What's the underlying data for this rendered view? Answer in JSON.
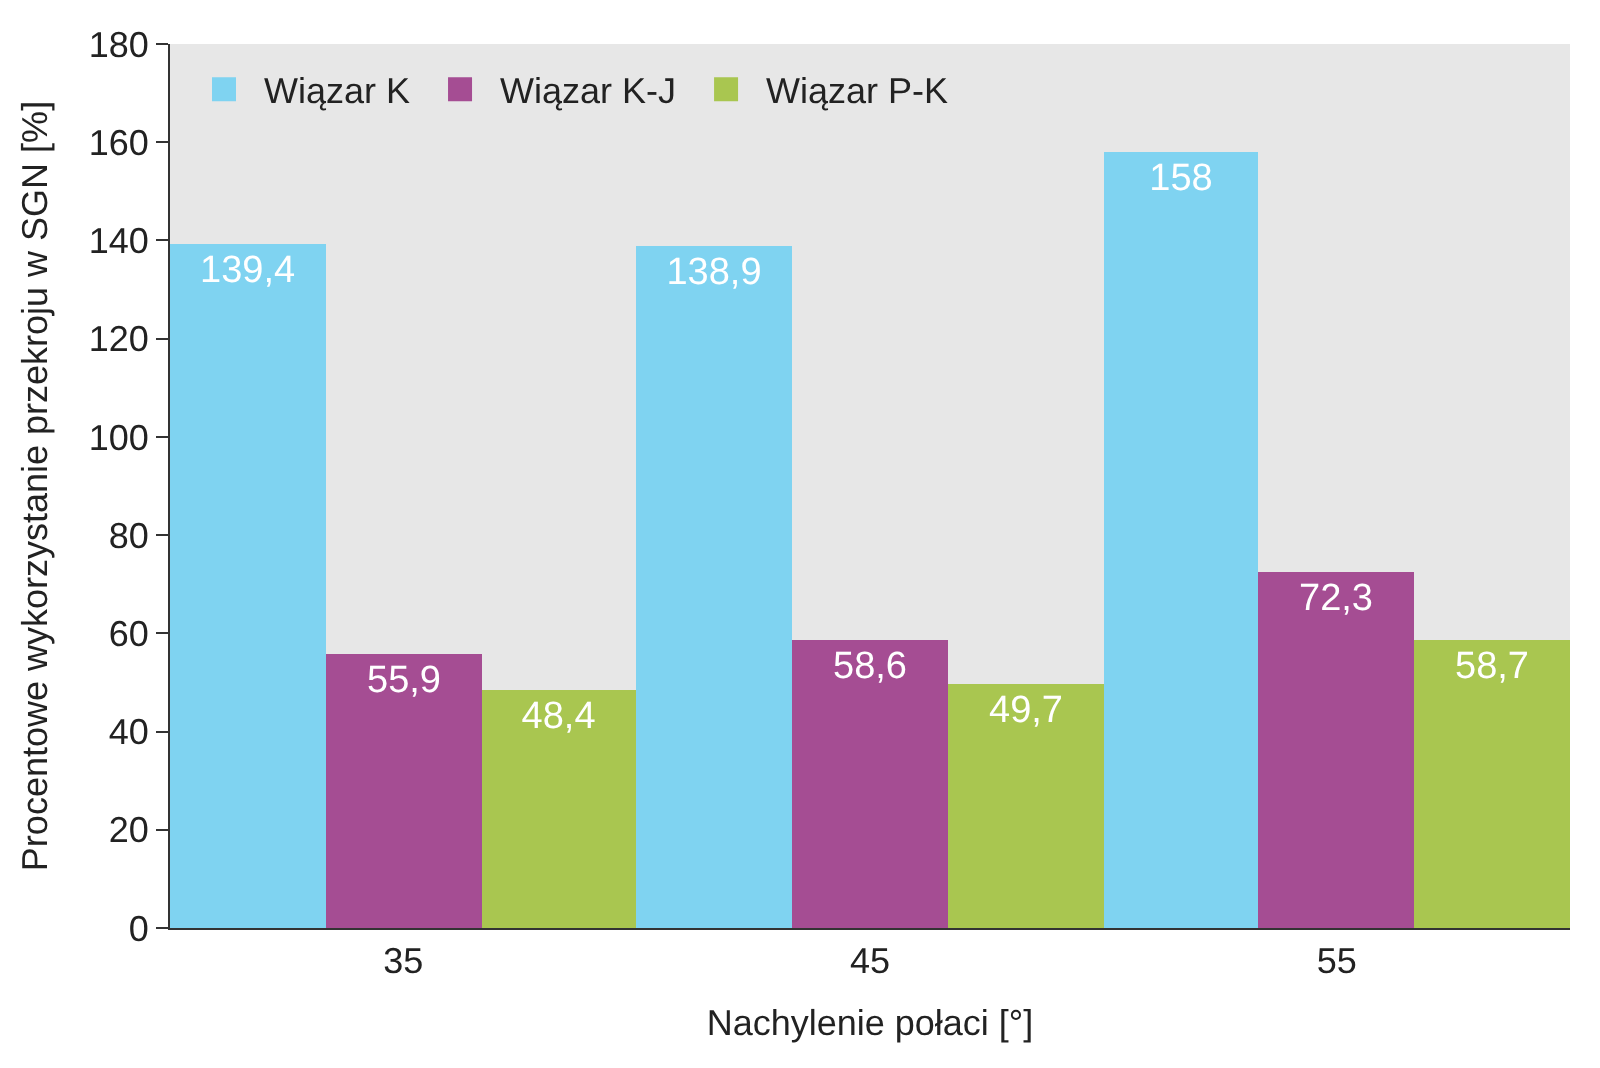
{
  "chart_data": {
    "type": "bar",
    "xlabel": "Nachylenie połaci [°]",
    "ylabel": "Procentowe wykorzystanie przekroju w SGN [%]",
    "categories": [
      "35",
      "45",
      "55"
    ],
    "series": [
      {
        "name": "Wiązar K",
        "color": "#7fd3f1",
        "values": [
          139.4,
          138.9,
          158
        ],
        "value_labels": [
          "139,4",
          "138,9",
          "158"
        ]
      },
      {
        "name": "Wiązar K-J",
        "color": "#a54d93",
        "values": [
          55.9,
          58.6,
          72.3
        ],
        "value_labels": [
          "55,9",
          "58,6",
          "72,3"
        ]
      },
      {
        "name": "Wiązar P-K",
        "color": "#a9c650",
        "values": [
          48.4,
          49.7,
          58.7
        ],
        "value_labels": [
          "48,4",
          "49,7",
          "58,7"
        ]
      }
    ],
    "ylim": [
      0,
      180
    ],
    "yticks": [
      0,
      20,
      40,
      60,
      80,
      100,
      120,
      140,
      160,
      180
    ],
    "legend": "top left",
    "grid": false
  }
}
